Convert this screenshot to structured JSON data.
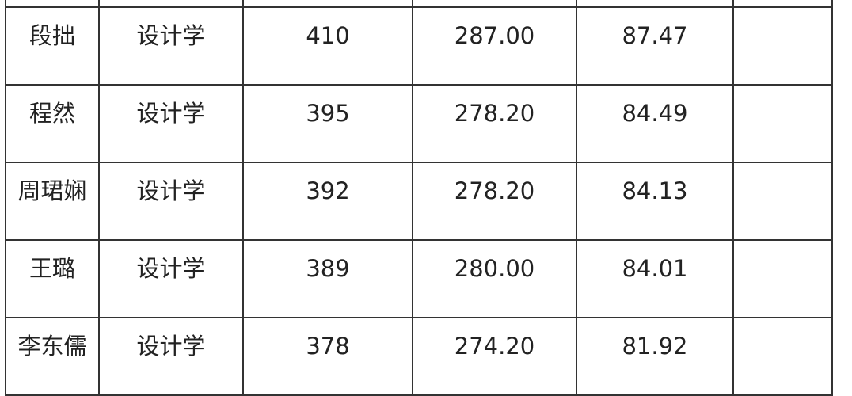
{
  "rows": [
    {
      "name": "段拙",
      "major": "设计学",
      "score1": "410",
      "score2": "287.00",
      "score3": "87.47",
      "note": ""
    },
    {
      "name": "程然",
      "major": "设计学",
      "score1": "395",
      "score2": "278.20",
      "score3": "84.49",
      "note": ""
    },
    {
      "name": "周珺娴",
      "major": "设计学",
      "score1": "392",
      "score2": "278.20",
      "score3": "84.13",
      "note": ""
    },
    {
      "name": "王璐",
      "major": "设计学",
      "score1": "389",
      "score2": "280.00",
      "score3": "84.01",
      "note": ""
    },
    {
      "name": "李东儒",
      "major": "设计学",
      "score1": "378",
      "score2": "274.20",
      "score3": "81.92",
      "note": ""
    }
  ]
}
